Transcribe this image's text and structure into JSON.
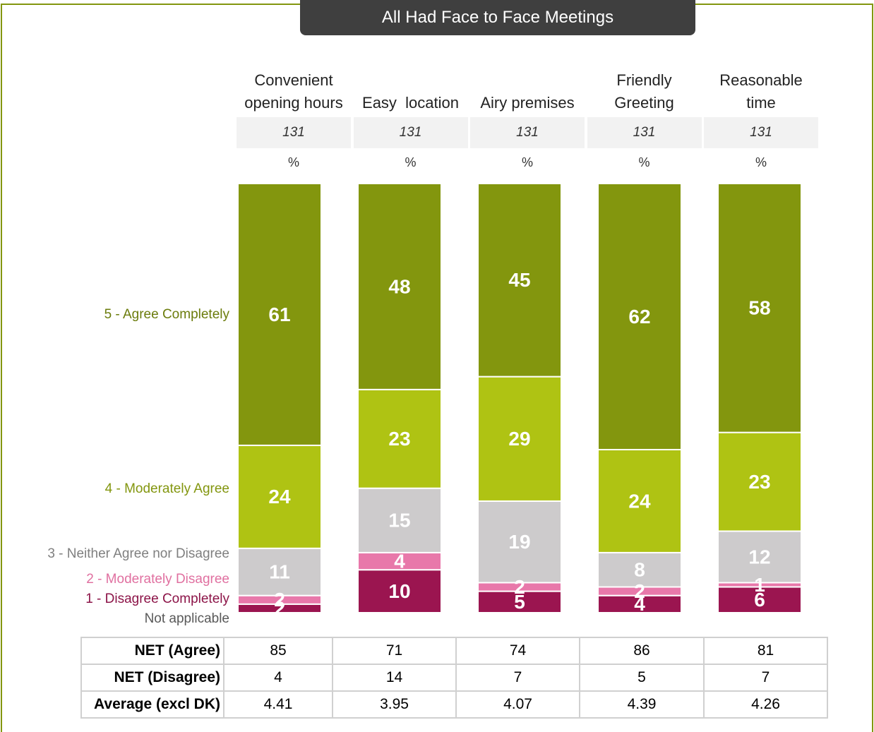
{
  "chart_data": {
    "type": "stacked-bar",
    "title": "All Had Face to Face Meetings",
    "categories": [
      "Convenient opening hours",
      "Easy  location",
      "Airy premises",
      "Friendly Greeting",
      "Reasonable time"
    ],
    "bases": [
      131,
      131,
      131,
      131,
      131
    ],
    "unit": "%",
    "ylim": [
      0,
      100
    ],
    "series": [
      {
        "name": "Not applicable",
        "color": "#bdbdbd",
        "label_color": "#595959",
        "values": [
          0,
          0,
          0,
          0,
          0
        ]
      },
      {
        "name": "1 - Disagree Completely",
        "color": "#9b1550",
        "label_color": "#8c1448",
        "values": [
          2,
          10,
          5,
          4,
          6
        ]
      },
      {
        "name": "2 - Moderately Disagree",
        "color": "#e878aa",
        "label_color": "#e070a0",
        "values": [
          2,
          4,
          2,
          2,
          1
        ]
      },
      {
        "name": "3 - Neither Agree nor Disagree",
        "color": "#cdcbcc",
        "label_color": "#7f7f7f",
        "values": [
          11,
          15,
          19,
          8,
          12
        ]
      },
      {
        "name": "4 - Moderately Agree",
        "color": "#afc313",
        "label_color": "#83960f",
        "values": [
          24,
          23,
          29,
          24,
          23
        ]
      },
      {
        "name": "5 - Agree Completely",
        "color": "#83960e",
        "label_color": "#6b7c0c",
        "values": [
          61,
          48,
          45,
          62,
          58
        ]
      }
    ],
    "table": {
      "rows": [
        {
          "label": "NET (Agree)",
          "values": [
            85,
            71,
            74,
            86,
            81
          ]
        },
        {
          "label": "NET (Disagree)",
          "values": [
            4,
            14,
            7,
            5,
            7
          ]
        },
        {
          "label": "Average (excl DK)",
          "values": [
            4.41,
            3.95,
            4.07,
            4.39,
            4.26
          ]
        }
      ]
    }
  }
}
